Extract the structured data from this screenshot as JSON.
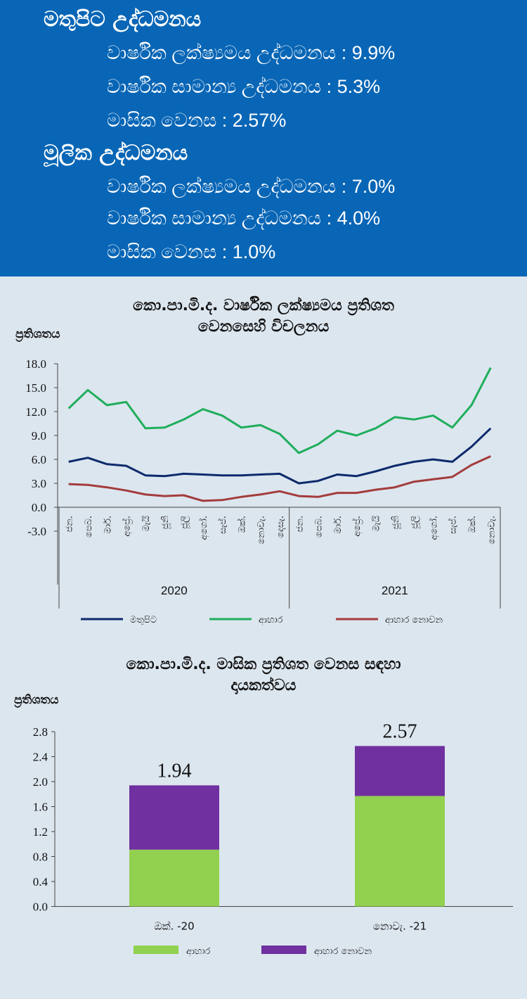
{
  "header": {
    "headline": {
      "title": "මතුපිට උද්ධමනය",
      "stats": [
        "වාර්ෂික ලක්ෂ්‍යමය උද්ධමනය : 9.9%",
        "වාර්ෂික සාමාන්‍ය උද්ධමනය : 5.3%",
        "මාසික වෙනස : 2.57%"
      ]
    },
    "core": {
      "title": "මූලික උද්ධමනය",
      "stats": [
        "වාර්ෂික ලක්ෂ්‍යමය උද්ධමනය : 7.0%",
        "වාර්ෂික සාමාන්‍ය උද්ධමනය : 4.0%",
        "මාසික වෙනස : 1.0%"
      ]
    }
  },
  "colors": {
    "header_bg": "#0966b6",
    "headline": "#0d2a6b",
    "food": "#1fae5b",
    "nonfood": "#a33c3c",
    "bar_food": "#92d050",
    "bar_nonfood": "#7030a0"
  },
  "chart_data": [
    {
      "type": "line",
      "title": "කො.පා.මි.ද. වාර්ෂික ලක්ෂ්‍යමය ප්‍රතිශත වෙනසෙහි විචලනය",
      "title_lines": [
        "කො.පා.මි.ද. වාර්ෂික ලක්ෂ්‍යමය ප්‍රතිශත",
        "වෙනසෙහි විචලනය"
      ],
      "ylabel": "ප්‍රතිශතය",
      "ylim": [
        -3.0,
        18.0
      ],
      "yticks": [
        "18.0",
        "15.0",
        "12.0",
        "9.0",
        "6.0",
        "3.0",
        "0.0",
        "-3.0"
      ],
      "categories": [
        "ජන.",
        "පෙබ.",
        "මාර්.",
        "අප්‍රේ.",
        "මැයි",
        "ජූනි",
        "ජූලි",
        "අගෝ.",
        "සැප්.",
        "ඔක්.",
        "නොවැ.",
        "දෙසැ.",
        "ජන.",
        "පෙබ.",
        "මාර්.",
        "අප්‍රේ.",
        "මැයි",
        "ජූනි",
        "ජූලි",
        "අගෝ.",
        "සැප්.",
        "ඔක්.",
        "නොවැ."
      ],
      "year_groups": [
        {
          "label": "2020",
          "count": 12
        },
        {
          "label": "2021",
          "count": 11
        }
      ],
      "series": [
        {
          "name": "මතුපිට",
          "values": [
            5.7,
            6.2,
            5.4,
            5.2,
            4.0,
            3.9,
            4.2,
            4.1,
            4.0,
            4.0,
            4.1,
            4.2,
            3.0,
            3.3,
            4.1,
            3.9,
            4.5,
            5.2,
            5.7,
            6.0,
            5.7,
            7.6,
            9.9
          ]
        },
        {
          "name": "ආහාර",
          "values": [
            12.4,
            14.7,
            12.8,
            13.2,
            9.9,
            10.0,
            11.0,
            12.3,
            11.5,
            10.0,
            10.3,
            9.2,
            6.8,
            7.9,
            9.6,
            9.0,
            9.9,
            11.3,
            11.0,
            11.5,
            10.0,
            12.8,
            17.5
          ]
        },
        {
          "name": "ආහාර නොවන",
          "values": [
            2.9,
            2.8,
            2.5,
            2.1,
            1.6,
            1.4,
            1.5,
            0.8,
            0.9,
            1.3,
            1.6,
            2.0,
            1.4,
            1.3,
            1.8,
            1.8,
            2.2,
            2.5,
            3.2,
            3.5,
            3.8,
            5.3,
            6.4
          ]
        }
      ]
    },
    {
      "type": "bar",
      "title": "කො.පා.මි.ද. මාසික ප්‍රතිශත වෙනස සඳහා දායකත්වය",
      "title_lines": [
        "කො.පා.මි.ද. මාසික  ප්‍රතිශත වෙනස සඳහා",
        "දායකත්වය"
      ],
      "ylabel": "ප්‍රතිශතය",
      "ylim": [
        0.0,
        2.8
      ],
      "yticks": [
        "2.8",
        "2.4",
        "2.0",
        "1.6",
        "1.2",
        "0.8",
        "0.4",
        "0.0"
      ],
      "categories": [
        "ඔක්. -20",
        "නොවැ. -21"
      ],
      "series": [
        {
          "name": "ආහාර",
          "values": [
            0.91,
            1.77
          ]
        },
        {
          "name": "ආහාර නොවන",
          "values": [
            1.03,
            0.8
          ]
        }
      ],
      "totals": [
        "1.94",
        "2.57"
      ]
    }
  ]
}
